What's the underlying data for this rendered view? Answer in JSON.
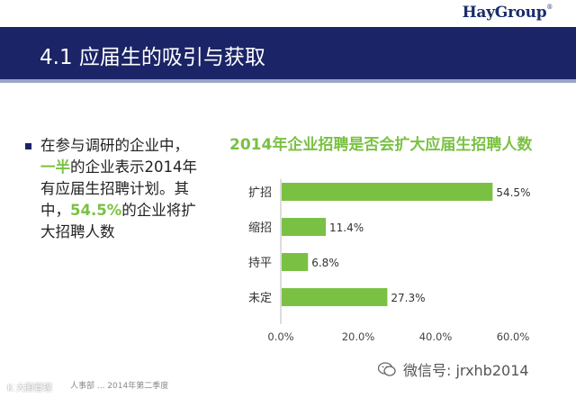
{
  "logo": {
    "text": "HayGroup",
    "mark": "®"
  },
  "header": {
    "title": "4.1 应届生的吸引与获取"
  },
  "bullet": {
    "segments": [
      {
        "text": "在参与调研的企业中，",
        "highlight": false
      },
      {
        "text": "一半",
        "highlight": true
      },
      {
        "text": "的企业表示2014年有应届生招聘计划。其中，",
        "highlight": false
      },
      {
        "text": "54.5%",
        "highlight": true
      },
      {
        "text": "的企业将扩大招聘人数",
        "highlight": false
      }
    ]
  },
  "colors": {
    "header_bg": "#1b2466",
    "bar_fill": "#7ac143",
    "highlight_text": "#7ac143"
  },
  "chart_data": {
    "type": "bar",
    "orientation": "horizontal",
    "title": "2014年企业招聘是否会扩大应届生招聘人数",
    "categories": [
      "扩招",
      "缩招",
      "持平",
      "未定"
    ],
    "values": [
      54.5,
      11.4,
      6.8,
      27.3
    ],
    "value_labels": [
      "54.5%",
      "11.4%",
      "6.8%",
      "27.3%"
    ],
    "xlim": [
      0,
      60
    ],
    "x_ticks": [
      "0.0%",
      "20.0%",
      "40.0%",
      "60.0%"
    ],
    "grid": false
  },
  "footer": {
    "brand": "K 大鹏管理",
    "small_text": "人事部 ... 2014年第二季度"
  },
  "wechat": {
    "icon": "wechat-icon",
    "text": "微信号: jrxhb2014"
  }
}
